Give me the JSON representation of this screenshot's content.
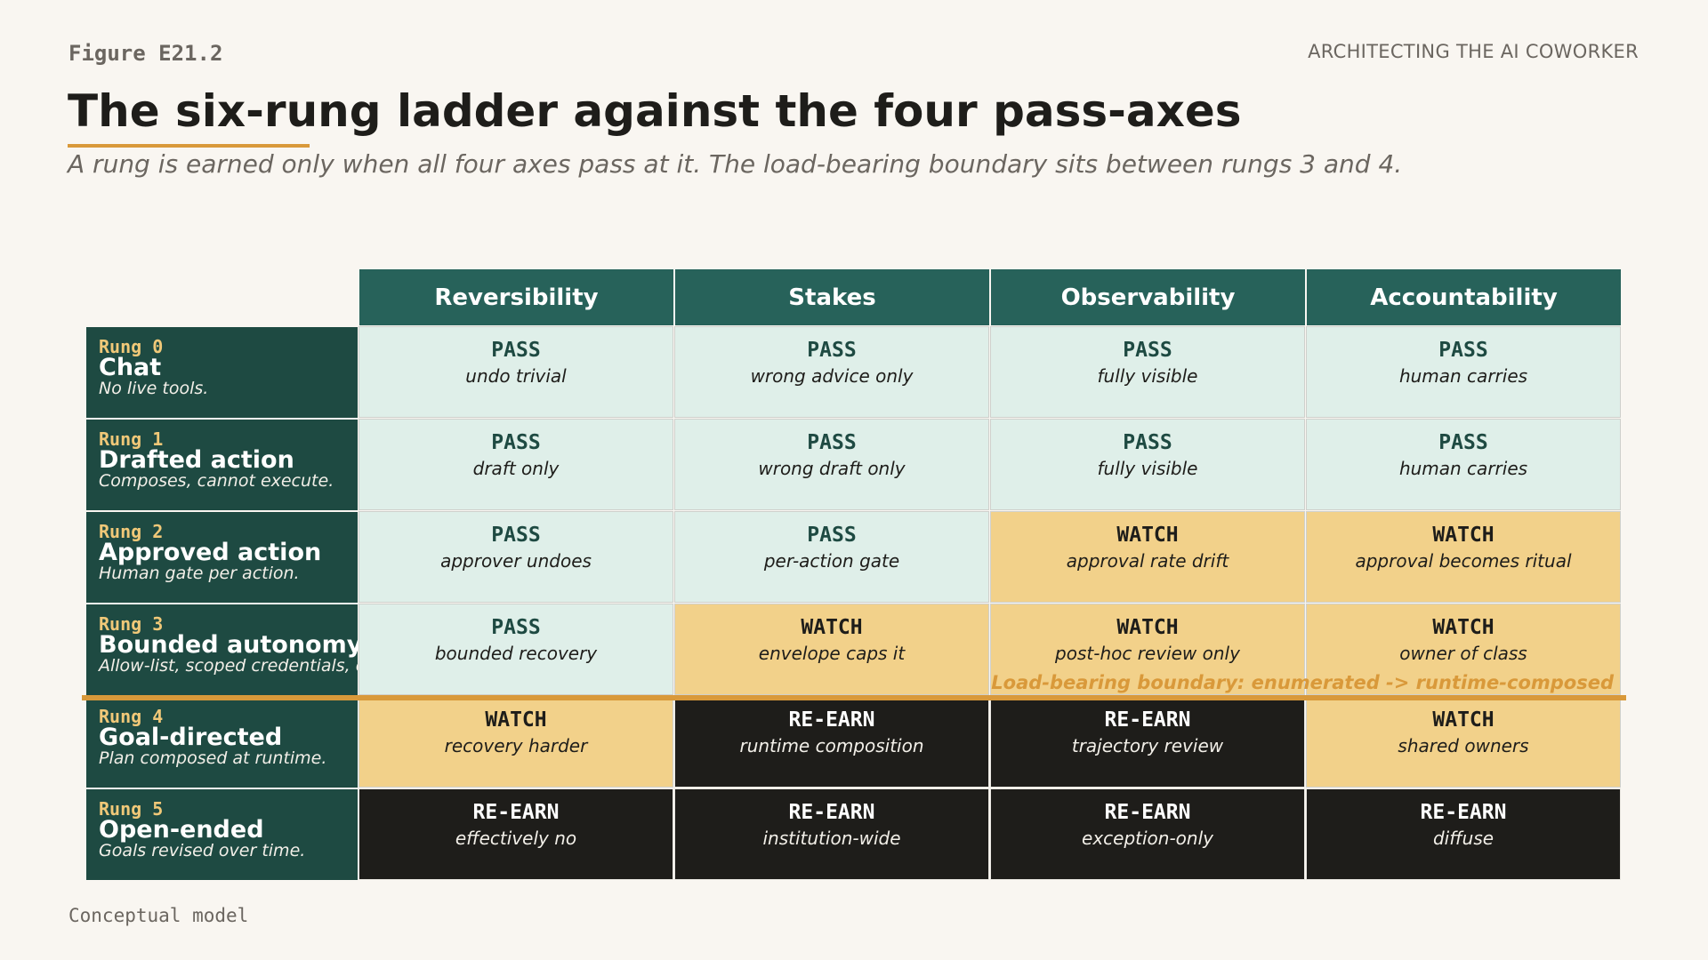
{
  "figure_label": "Figure E21.2",
  "book_title": "ARCHITECTING THE AI COWORKER",
  "title": "The six-rung ladder against the four pass-axes",
  "subtitle": "A rung is earned only when all four axes pass at it. The load-bearing boundary sits between rungs 3 and 4.",
  "colors": {
    "background": "#f9f6f1",
    "header_teal": "#27625a",
    "row_header_teal": "#1e4a42",
    "pass_fill": "#dfefe9",
    "watch_fill": "#f2d18a",
    "reearn_fill": "#1e1d1a",
    "accent": "#d9993a",
    "rung_id": "#f0c878"
  },
  "axes": [
    "Reversibility",
    "Stakes",
    "Observability",
    "Accountability"
  ],
  "rungs": [
    {
      "id": "Rung 0",
      "name": "Chat",
      "desc": "No live tools.",
      "cells": [
        {
          "status": "PASS",
          "note": "undo trivial"
        },
        {
          "status": "PASS",
          "note": "wrong advice only"
        },
        {
          "status": "PASS",
          "note": "fully visible"
        },
        {
          "status": "PASS",
          "note": "human carries"
        }
      ]
    },
    {
      "id": "Rung 1",
      "name": "Drafted action",
      "desc": "Composes, cannot execute.",
      "cells": [
        {
          "status": "PASS",
          "note": "draft only"
        },
        {
          "status": "PASS",
          "note": "wrong draft only"
        },
        {
          "status": "PASS",
          "note": "fully visible"
        },
        {
          "status": "PASS",
          "note": "human carries"
        }
      ]
    },
    {
      "id": "Rung 2",
      "name": "Approved action",
      "desc": "Human gate per action.",
      "cells": [
        {
          "status": "PASS",
          "note": "approver undoes"
        },
        {
          "status": "PASS",
          "note": "per-action gate"
        },
        {
          "status": "WATCH",
          "note": "approval rate drift"
        },
        {
          "status": "WATCH",
          "note": "approval becomes ritual"
        }
      ]
    },
    {
      "id": "Rung 3",
      "name": "Bounded autonomy",
      "desc": "Allow-list, scoped credentials, caps.",
      "cells": [
        {
          "status": "PASS",
          "note": "bounded recovery"
        },
        {
          "status": "WATCH",
          "note": "envelope caps it"
        },
        {
          "status": "WATCH",
          "note": "post-hoc review only"
        },
        {
          "status": "WATCH",
          "note": "owner of class"
        }
      ]
    },
    {
      "id": "Rung 4",
      "name": "Goal-directed",
      "desc": "Plan composed at runtime.",
      "cells": [
        {
          "status": "WATCH",
          "note": "recovery harder"
        },
        {
          "status": "RE-EARN",
          "note": "runtime composition"
        },
        {
          "status": "RE-EARN",
          "note": "trajectory review"
        },
        {
          "status": "WATCH",
          "note": "shared owners"
        }
      ]
    },
    {
      "id": "Rung 5",
      "name": "Open-ended",
      "desc": "Goals revised over time.",
      "cells": [
        {
          "status": "RE-EARN",
          "note": "effectively no"
        },
        {
          "status": "RE-EARN",
          "note": "institution-wide"
        },
        {
          "status": "RE-EARN",
          "note": "exception-only"
        },
        {
          "status": "RE-EARN",
          "note": "diffuse"
        }
      ]
    }
  ],
  "boundary": {
    "after_rung": "Rung 3",
    "label": "Load-bearing boundary: enumerated -> runtime-composed"
  },
  "footer": "Conceptual model"
}
